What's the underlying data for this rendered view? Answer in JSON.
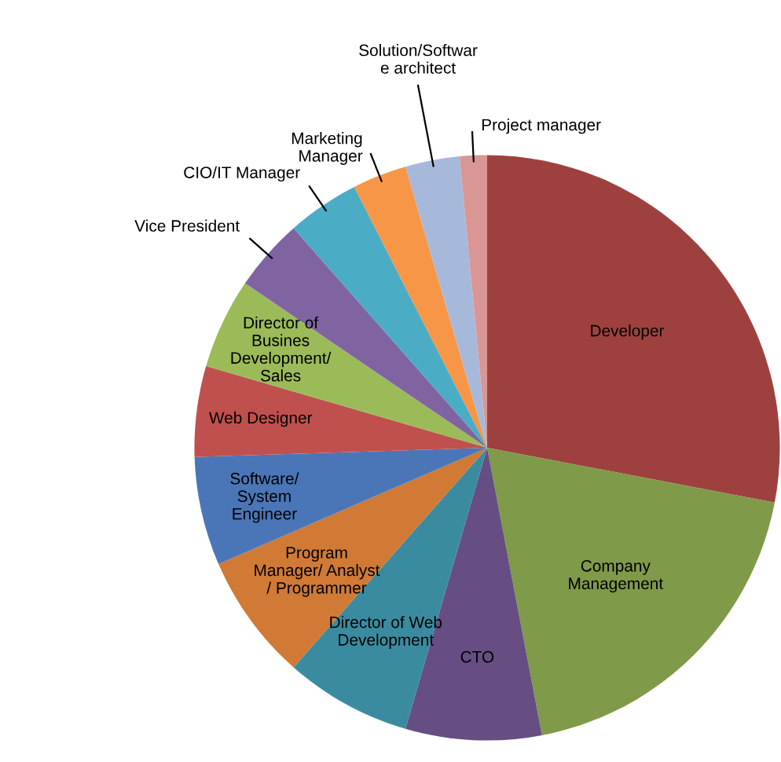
{
  "chart_data": {
    "type": "pie",
    "categories": [
      "Developer",
      "Company\nManagement",
      "CTO",
      "Director of Web\nDevelopment",
      "Program\nManager/ Analyst\n/ Programmer",
      "Software/\nSystem\nEngineer",
      "Web Designer",
      "Director of\nBusines\nDevelopment/\nSales",
      "Vice President",
      "CIO/IT Manager",
      "Marketing\nManager",
      "Solution/Softwar\ne architect",
      "Project manager"
    ],
    "values": [
      28,
      19,
      7.5,
      7,
      7,
      6,
      5,
      5,
      4,
      4,
      3,
      3,
      1.5
    ],
    "colors": [
      "#9e413e",
      "#7f9a48",
      "#664e83",
      "#3a8ba0",
      "#d07a35",
      "#4a76b8",
      "#c0504d",
      "#9bbb59",
      "#8064a2",
      "#4bacc6",
      "#f79646",
      "#a7b9da",
      "#d99694"
    ],
    "legend": false
  }
}
